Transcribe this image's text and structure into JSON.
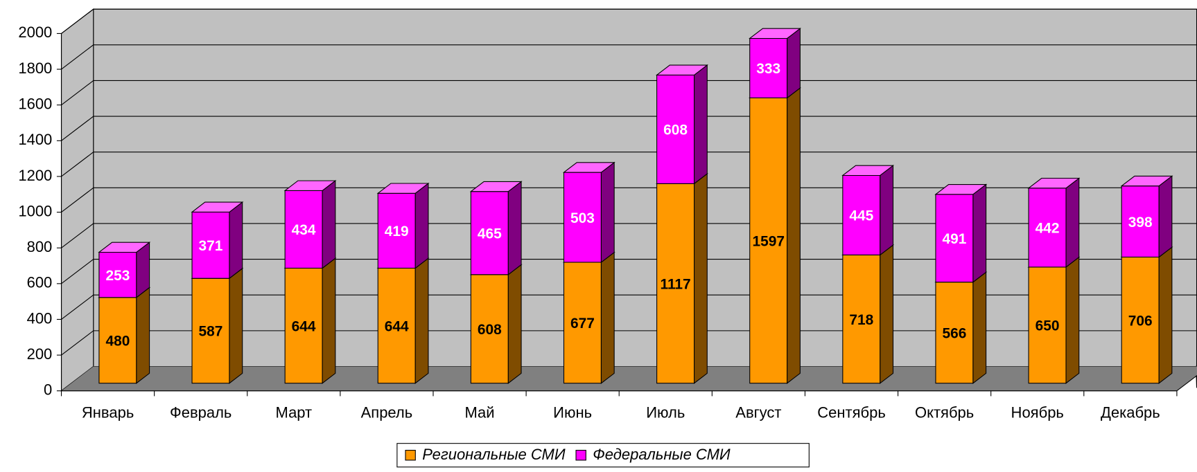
{
  "chart_data": {
    "type": "bar3d_stacked",
    "categories": [
      "Январь",
      "Февраль",
      "Март",
      "Апрель",
      "Май",
      "Июнь",
      "Июль",
      "Август",
      "Сентябрь",
      "Октябрь",
      "Ноябрь",
      "Декабрь"
    ],
    "series": [
      {
        "name": "Региональные СМИ",
        "color": "#ff9900",
        "values": [
          480,
          587,
          644,
          644,
          608,
          677,
          1117,
          1597,
          718,
          566,
          650,
          706
        ]
      },
      {
        "name": "Федеральные СМИ",
        "color": "#ff00ff",
        "values": [
          253,
          371,
          434,
          419,
          465,
          503,
          608,
          333,
          445,
          491,
          442,
          398
        ]
      }
    ],
    "ylim": [
      0,
      2000
    ],
    "yticks": [
      0,
      200,
      400,
      600,
      800,
      1000,
      1200,
      1400,
      1600,
      1800,
      2000
    ],
    "grid": true,
    "legend": "bottom"
  }
}
